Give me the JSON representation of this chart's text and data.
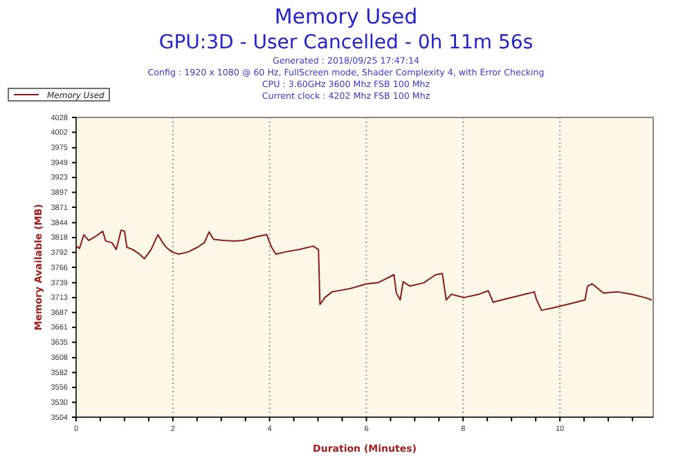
{
  "chart_data": {
    "type": "line",
    "title": "Memory Used",
    "subtitle": "GPU:3D - User Cancelled - 0h 11m 56s",
    "annotations": [
      "Generated : 2018/09/25 17:47:14",
      "Config : 1920 x 1080 @ 60 Hz, FullScreen mode, Shader Complexity 4, with Error Checking",
      "CPU : 3.60GHz 3600 Mhz FSB 100 Mhz",
      "Current clock : 4202 Mhz FSB 100 Mhz"
    ],
    "xlabel": "Duration (Minutes)",
    "ylabel": "Memory Available (MB)",
    "xlim": [
      0,
      11.93
    ],
    "ylim": [
      3504,
      4028
    ],
    "xticks": [
      0,
      {
        "value": 0.5,
        "label": null
      },
      {
        "value": 1,
        "label": null
      },
      {
        "value": 1.5,
        "label": null
      },
      2,
      {
        "value": 2.5,
        "label": null
      },
      {
        "value": 3,
        "label": null
      },
      {
        "value": 3.5,
        "label": null
      },
      4,
      {
        "value": 4.5,
        "label": null
      },
      {
        "value": 5,
        "label": null
      },
      {
        "value": 5.5,
        "label": null
      },
      6,
      {
        "value": 6.5,
        "label": null
      },
      {
        "value": 7,
        "label": null
      },
      {
        "value": 7.5,
        "label": null
      },
      8,
      {
        "value": 8.5,
        "label": null
      },
      {
        "value": 9,
        "label": null
      },
      {
        "value": 9.5,
        "label": null
      },
      10,
      {
        "value": 10.5,
        "label": null
      },
      {
        "value": 11,
        "label": null
      },
      {
        "value": 11.5,
        "label": null
      }
    ],
    "yticks": [
      3504,
      3530,
      3556,
      3582,
      3608,
      3635,
      3661,
      3687,
      3713,
      3739,
      3766,
      3792,
      3818,
      3844,
      3871,
      3897,
      3923,
      3949,
      3975,
      4002,
      4028
    ],
    "grid": "x",
    "legend": "top left",
    "marker": "none",
    "line_style": "solid",
    "x": [
      0,
      0.07,
      0.16,
      0.26,
      0.4,
      0.55,
      0.61,
      0.74,
      0.83,
      0.93,
      1.0,
      1.05,
      1.17,
      1.31,
      1.41,
      1.55,
      1.69,
      1.79,
      1.86,
      1.98,
      2.12,
      2.32,
      2.51,
      2.65,
      2.75,
      2.84,
      3.03,
      3.27,
      3.46,
      3.75,
      3.94,
      4.04,
      4.13,
      4.33,
      4.61,
      4.9,
      5.01,
      5.04,
      5.14,
      5.29,
      5.67,
      6.0,
      6.24,
      6.57,
      6.62,
      6.7,
      6.76,
      6.9,
      7.19,
      7.43,
      7.57,
      7.65,
      7.76,
      8.01,
      8.33,
      8.52,
      8.62,
      8.9,
      9.19,
      9.47,
      9.52,
      9.62,
      9.86,
      10.24,
      10.52,
      10.57,
      10.67,
      10.9,
      11.19,
      11.48,
      11.76,
      11.9
    ],
    "series": [
      {
        "name": "Memory Used",
        "color": "#8b1a1a",
        "values": [
          3803,
          3799,
          3823,
          3813,
          3820,
          3829,
          3812,
          3809,
          3797,
          3831,
          3829,
          3801,
          3797,
          3789,
          3781,
          3797,
          3823,
          3809,
          3801,
          3793,
          3789,
          3793,
          3801,
          3809,
          3828,
          3815,
          3813,
          3812,
          3813,
          3820,
          3823,
          3801,
          3789,
          3793,
          3797,
          3803,
          3797,
          3701,
          3713,
          3723,
          3729,
          3737,
          3739,
          3753,
          3721,
          3709,
          3741,
          3733,
          3739,
          3753,
          3755,
          3709,
          3719,
          3713,
          3719,
          3725,
          3705,
          3711,
          3717,
          3723,
          3709,
          3691,
          3695,
          3703,
          3709,
          3733,
          3737,
          3721,
          3723,
          3719,
          3713,
          3709
        ]
      }
    ]
  }
}
